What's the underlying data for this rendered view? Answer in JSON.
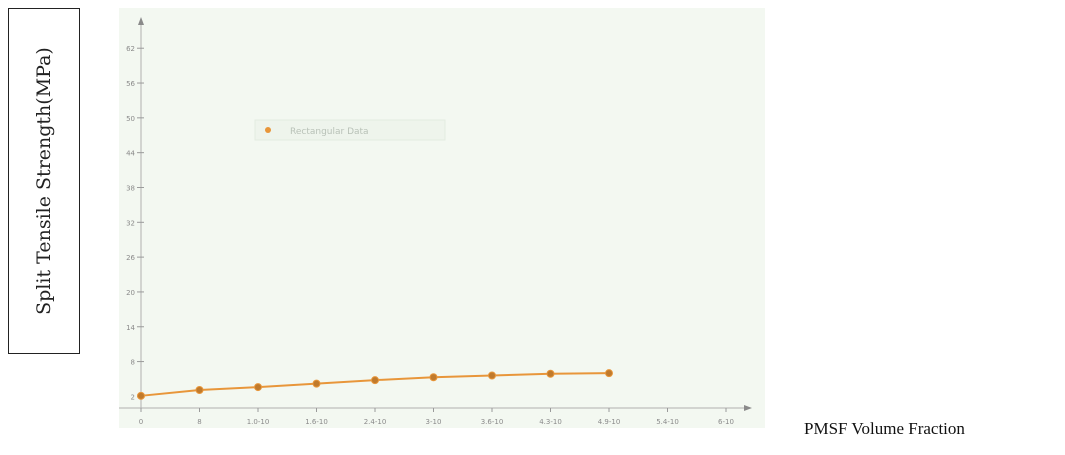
{
  "chart_data": {
    "type": "line",
    "title": "",
    "xlabel": "PMSF Volume Fraction",
    "ylabel": "Split Tensile Strength(MPa)",
    "x_tick_labels": [
      "0",
      "8",
      "1.0-10",
      "1.6-10",
      "2.4-10",
      "3-10",
      "3.6-10",
      "4.3-10",
      "4.9-10",
      "5.4-10",
      "6-10"
    ],
    "y_ticks": [
      2,
      8,
      14,
      20,
      26,
      32,
      38,
      44,
      50,
      56,
      62
    ],
    "ylim": [
      0,
      66
    ],
    "grid": false,
    "legend": {
      "position": "top-center",
      "text": "Rectangular Data"
    },
    "series": [
      {
        "name": "Rectangular Data",
        "color": "#e8963a",
        "x_index": [
          0,
          1,
          2,
          3,
          4,
          5,
          6,
          7,
          8
        ],
        "values": [
          2.1,
          3.1,
          3.6,
          4.2,
          4.8,
          5.3,
          5.6,
          5.9,
          6.0
        ]
      }
    ]
  }
}
